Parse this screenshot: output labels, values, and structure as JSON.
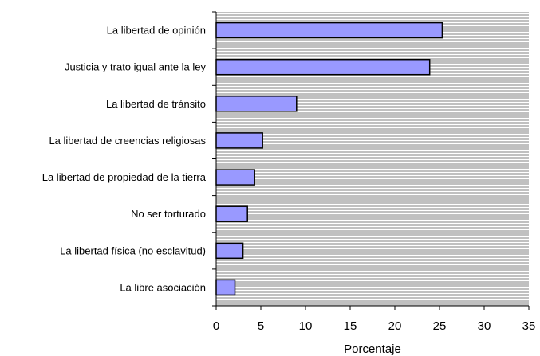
{
  "chart_data": {
    "type": "bar",
    "orientation": "horizontal",
    "categories": [
      "La libertad de opinión",
      "Justicia y trato igual ante la ley",
      "La libertad de tránsito",
      "La libertad de creencias religiosas",
      "La libertad de propiedad de la tierra",
      "No ser torturado",
      "La libertad física (no esclavitud)",
      "La libre asociación"
    ],
    "values": [
      25.3,
      23.9,
      9.0,
      5.2,
      4.3,
      3.5,
      3.0,
      2.1
    ],
    "xlabel": "Porcentaje",
    "xlim": [
      0,
      35
    ],
    "xticks": [
      "0",
      "5",
      "10",
      "15",
      "20",
      "25",
      "30",
      "35"
    ],
    "grid": "horizontal-line hatch background",
    "legend": "none",
    "colors": {
      "bar_fill": "#9999ff",
      "bar_stroke": "#000000",
      "plot_background": "#c0c0c0",
      "hatch_line": "#ffffff"
    }
  }
}
